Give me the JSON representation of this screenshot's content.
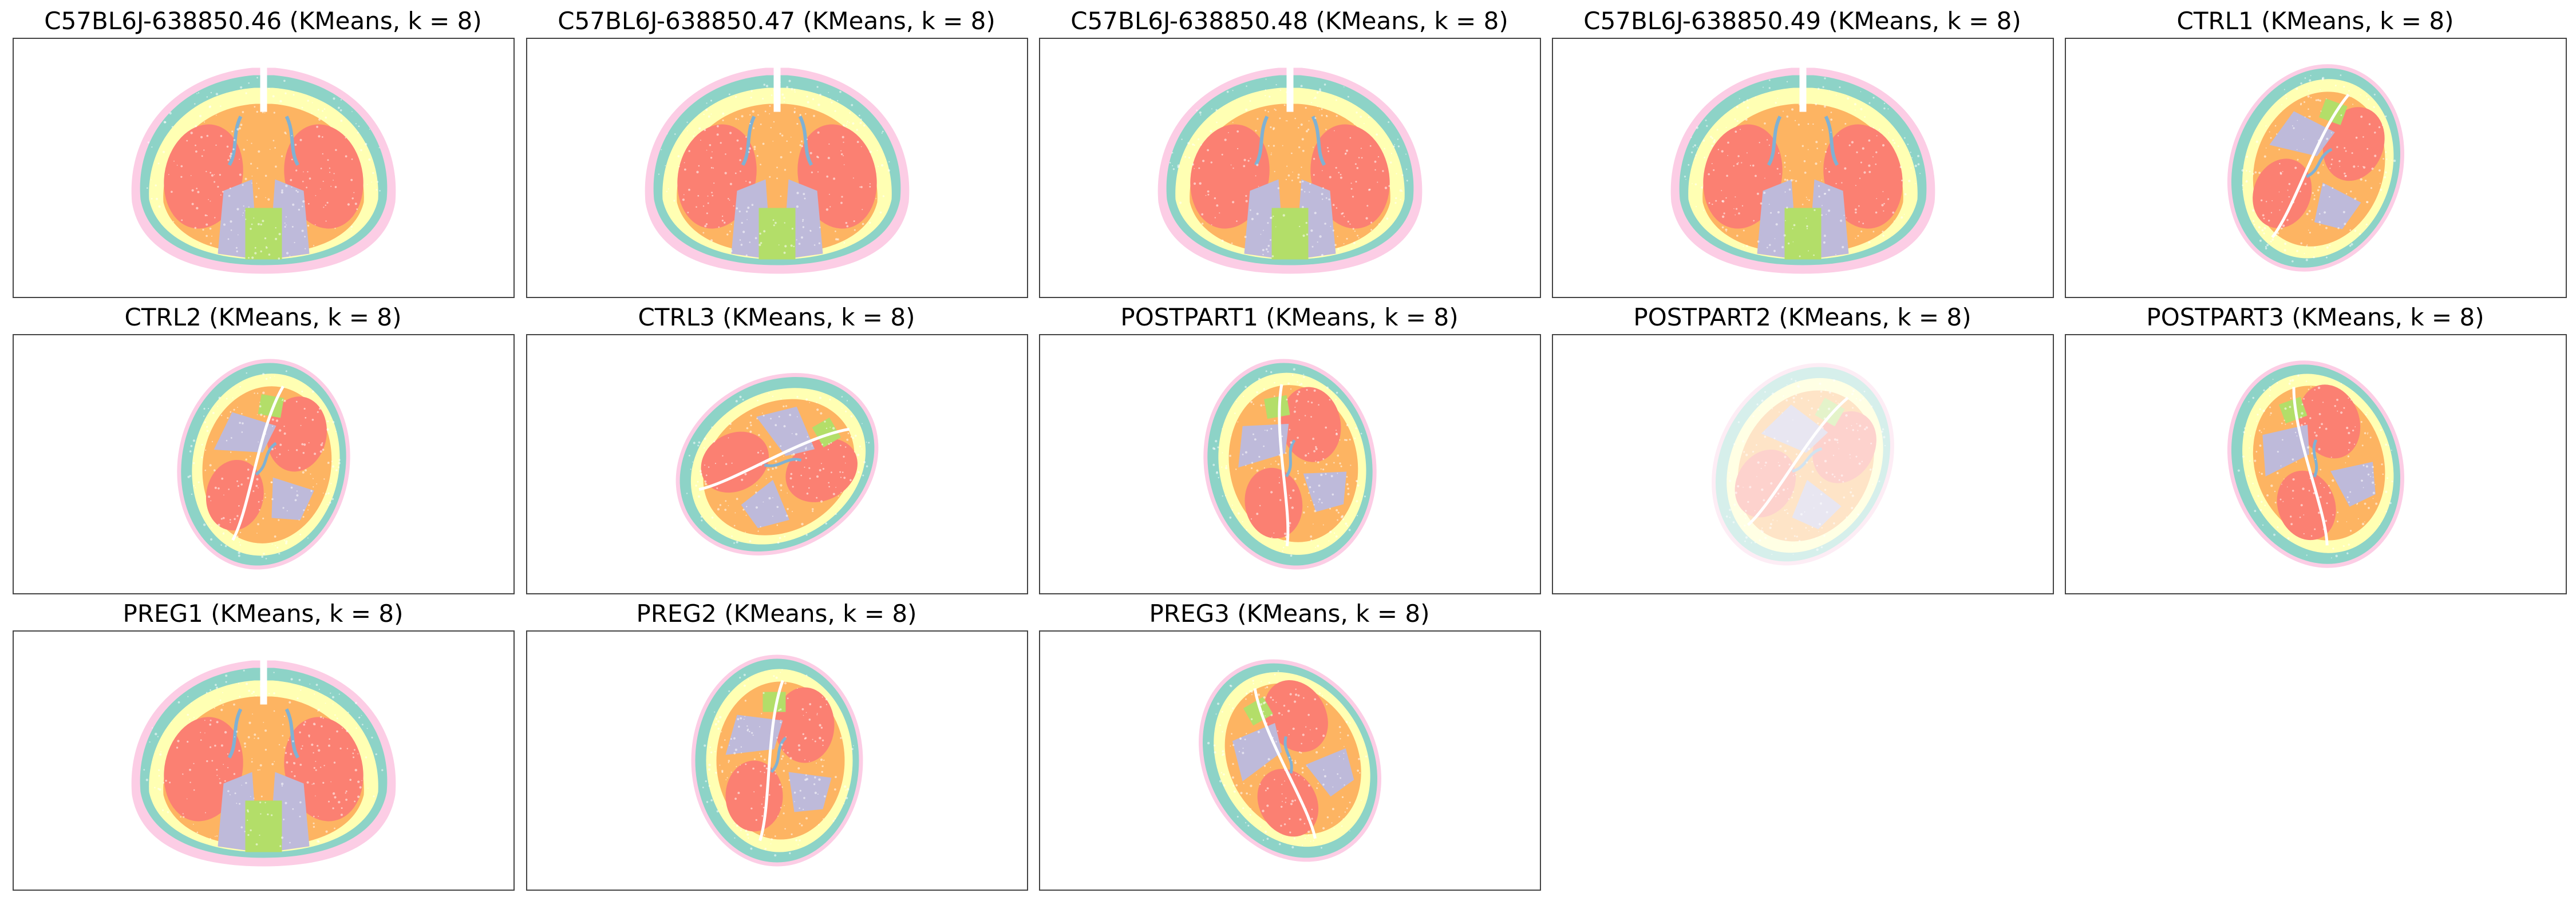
{
  "figure": {
    "ncols": 5,
    "colors": {
      "teal": "#8dd3c7",
      "yellow": "#ffffb3",
      "lavender": "#bebada",
      "salmon": "#fb8072",
      "blue": "#80b1d3",
      "orange": "#fdb462",
      "green": "#b3de69",
      "pink": "#fccde5"
    }
  },
  "chart_data": [
    {
      "type": "scatter",
      "title": "C57BL6J-638850.46 (KMeans, k = 8)",
      "shape": "coronal",
      "rotation": 0,
      "opacity": 1
    },
    {
      "type": "scatter",
      "title": "C57BL6J-638850.47 (KMeans, k = 8)",
      "shape": "coronal",
      "rotation": 0,
      "opacity": 1
    },
    {
      "type": "scatter",
      "title": "C57BL6J-638850.48 (KMeans, k = 8)",
      "shape": "coronal",
      "rotation": 0,
      "opacity": 1
    },
    {
      "type": "scatter",
      "title": "C57BL6J-638850.49 (KMeans, k = 8)",
      "shape": "coronal",
      "rotation": 0,
      "opacity": 1
    },
    {
      "type": "scatter",
      "title": "CTRL1 (KMeans, k = 8)",
      "shape": "round",
      "rotation": -70,
      "opacity": 1
    },
    {
      "type": "scatter",
      "title": "CTRL2 (KMeans, k = 8)",
      "shape": "round",
      "rotation": -80,
      "opacity": 1
    },
    {
      "type": "scatter",
      "title": "CTRL3 (KMeans, k = 8)",
      "shape": "round",
      "rotation": -30,
      "opacity": 1
    },
    {
      "type": "scatter",
      "title": "POSTPART1 (KMeans, k = 8)",
      "shape": "round",
      "rotation": -100,
      "opacity": 1
    },
    {
      "type": "scatter",
      "title": "POSTPART2 (KMeans, k = 8)",
      "shape": "round",
      "rotation": -60,
      "opacity": 0.35
    },
    {
      "type": "scatter",
      "title": "POSTPART3 (KMeans, k = 8)",
      "shape": "round",
      "rotation": -110,
      "opacity": 1
    },
    {
      "type": "scatter",
      "title": "PREG1 (KMeans, k = 8)",
      "shape": "coronal",
      "rotation": 0,
      "opacity": 1
    },
    {
      "type": "scatter",
      "title": "PREG2 (KMeans, k = 8)",
      "shape": "round",
      "rotation": -90,
      "opacity": 1
    },
    {
      "type": "scatter",
      "title": "PREG3 (KMeans, k = 8)",
      "shape": "round",
      "rotation": -120,
      "opacity": 1
    }
  ]
}
